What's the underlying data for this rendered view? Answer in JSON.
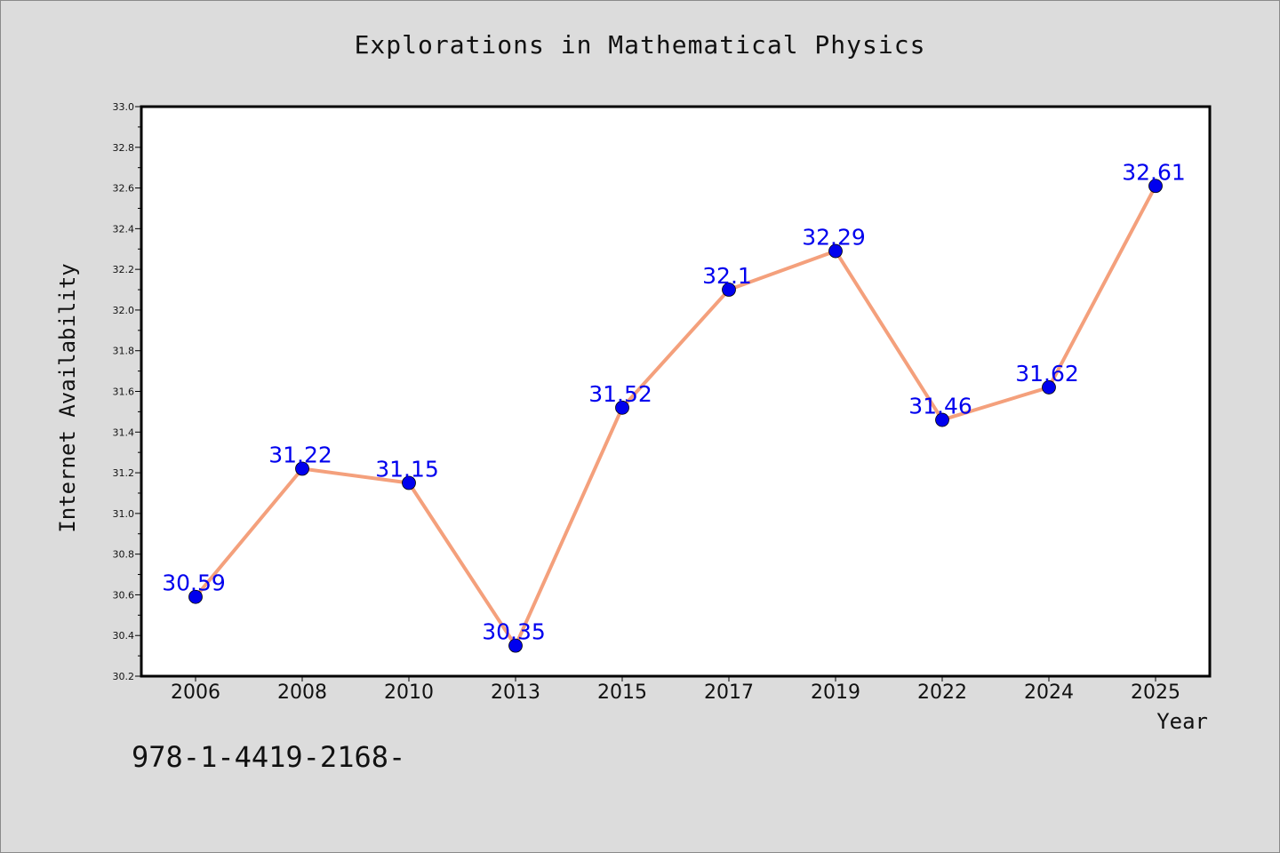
{
  "chart_data": {
    "type": "line",
    "title": "Explorations in Mathematical Physics",
    "xlabel": "Year",
    "ylabel": "Internet Availability",
    "categories": [
      "2006",
      "2008",
      "2010",
      "2013",
      "2015",
      "2017",
      "2019",
      "2022",
      "2024",
      "2025"
    ],
    "series": [
      {
        "values": [
          30.59,
          31.22,
          31.15,
          30.35,
          31.52,
          32.1,
          32.29,
          31.46,
          31.62,
          32.61
        ],
        "data_labels": [
          "30.59",
          "31.22",
          "31.15",
          "30.35",
          "31.52",
          "32.1",
          "32.29",
          "31.46",
          "31.62",
          "32.61"
        ],
        "line_color": "#f4a07c",
        "marker_color": "#0000ee"
      }
    ],
    "ylim": [
      30.2,
      33.0
    ],
    "yticks": [
      "30.2",
      "30.4",
      "30.6",
      "30.8",
      "31.0",
      "31.2",
      "31.4",
      "31.6",
      "31.8",
      "32.0",
      "32.2",
      "32.4",
      "32.6",
      "32.8",
      "33.0"
    ],
    "grid": false,
    "legend": "none"
  },
  "footer": {
    "isbn": "978-1-4419-2168-"
  },
  "colors": {
    "background": "#dcdcdc",
    "plot_area": "#ffffff",
    "data_label": "#0000ee"
  }
}
